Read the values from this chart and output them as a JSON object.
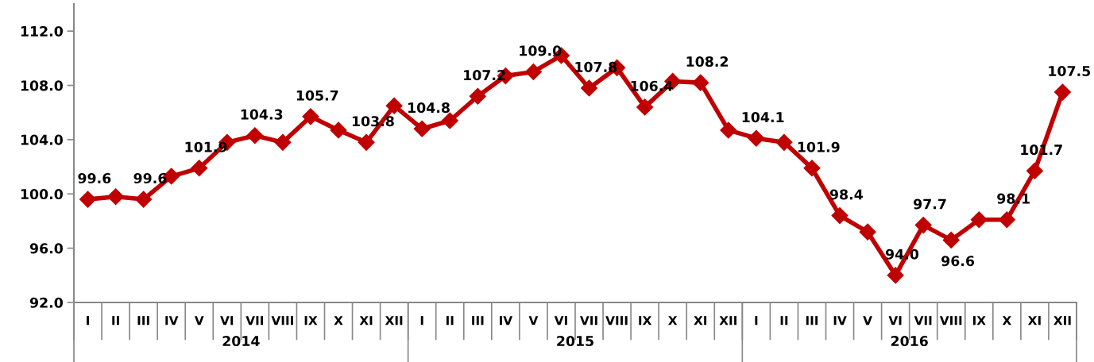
{
  "chart_data": {
    "type": "line",
    "categories": [
      "I",
      "II",
      "III",
      "IV",
      "V",
      "VI",
      "VII",
      "VIII",
      "IX",
      "X",
      "XI",
      "XII",
      "I",
      "II",
      "III",
      "IV",
      "V",
      "VI",
      "VII",
      "VIII",
      "IX",
      "X",
      "XI",
      "XII",
      "I",
      "II",
      "III",
      "IV",
      "V",
      "VI",
      "VII",
      "VIII",
      "IX",
      "X",
      "XI",
      "XII"
    ],
    "series": [
      {
        "color": "#c00000",
        "values": [
          99.6,
          99.8,
          99.6,
          101.3,
          101.9,
          103.8,
          104.3,
          103.8,
          105.7,
          104.7,
          103.8,
          106.5,
          104.8,
          105.4,
          107.2,
          108.7,
          109.0,
          110.2,
          107.8,
          109.3,
          106.4,
          108.3,
          108.2,
          104.7,
          104.1,
          103.8,
          101.9,
          98.4,
          97.2,
          94.0,
          97.7,
          96.6,
          98.1,
          98.1,
          101.7,
          107.5
        ],
        "value_labels": [
          "99.6",
          null,
          "99.6",
          null,
          "101.9",
          null,
          "104.3",
          null,
          "105.7",
          null,
          "103.8",
          null,
          "104.8",
          null,
          "107.2",
          null,
          "109.0",
          null,
          "107.8",
          null,
          "106.4",
          null,
          "108.2",
          null,
          "104.1",
          null,
          "101.9",
          "98.4",
          null,
          "94.0",
          "97.7",
          "96.6",
          null,
          "98.1",
          "101.7",
          "107.5"
        ]
      }
    ],
    "annotations": [
      "2014",
      "2015",
      "2016"
    ],
    "ylim": [
      92,
      114
    ],
    "yticks": [
      {
        "value": 92,
        "label": "92.0"
      },
      {
        "value": 96,
        "label": "96.0"
      },
      {
        "value": 100,
        "label": "100.0"
      },
      {
        "value": 104,
        "label": "104.0"
      },
      {
        "value": 108,
        "label": "108.0"
      },
      {
        "value": 112,
        "label": "112.0"
      }
    ],
    "marker": "diamond",
    "line_style": "solid",
    "grid": false
  }
}
